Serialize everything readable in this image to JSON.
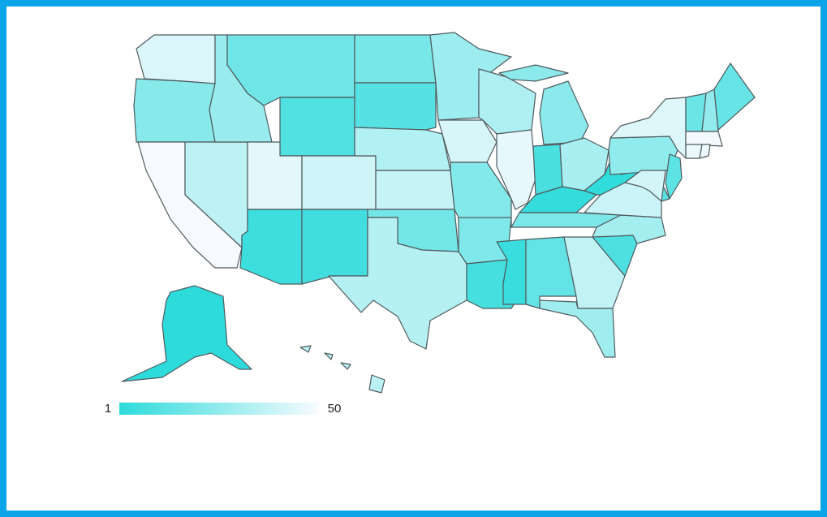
{
  "chart_data": {
    "type": "choropleth",
    "values": [
      43,
      23,
      50,
      36,
      27,
      17,
      10,
      45,
      40,
      5,
      6,
      19,
      11,
      33,
      38,
      18,
      34,
      28,
      42,
      22,
      21,
      7,
      32,
      46,
      24,
      8,
      31,
      3,
      20,
      4,
      14,
      37,
      29,
      9,
      30,
      39,
      2,
      25,
      44,
      16,
      26,
      15,
      49,
      47,
      48,
      13,
      12,
      41,
      1,
      35
    ],
    "colors": [
      "#2ddbdb",
      "#f7fbff"
    ],
    "clim": [
      1,
      50
    ],
    "cticks": [
      1,
      50
    ]
  }
}
